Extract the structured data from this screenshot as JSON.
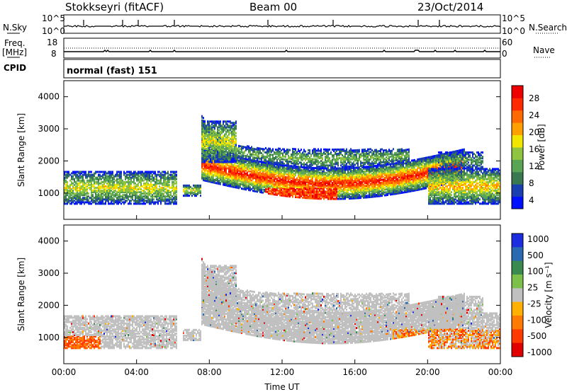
{
  "header": {
    "station": "Stokkseyri (fitACF)",
    "beam": "Beam 00",
    "date": "23/Oct/2014"
  },
  "top_panels": {
    "nsky_label": "N.Sky",
    "nsearch_label": "N.Search",
    "count_ticks": [
      "10^5",
      "10^0"
    ],
    "freq_label_1": "Freq.",
    "freq_label_2": "[MHz]",
    "freq_ticks": [
      "18",
      "8"
    ],
    "nave_label": "Nave",
    "nave_ticks": [
      "60",
      "0"
    ],
    "cpid_label": "CPID",
    "cpid_text": "normal (fast) 151"
  },
  "chart_data": [
    {
      "type": "heatmap",
      "title": "",
      "xlabel": "Time UT",
      "ylabel": "Slant Range [km]",
      "x_ticks": [
        "00:00",
        "04:00",
        "08:00",
        "12:00",
        "16:00",
        "20:00",
        "00:00"
      ],
      "x_range_hours": [
        0,
        24
      ],
      "ylim": [
        180,
        4500
      ],
      "y_ticks": [
        1000,
        2000,
        3000,
        4000
      ],
      "colorbar": {
        "label": "Power [dB]",
        "range": [
          0,
          31
        ],
        "ticks": [
          "28",
          "24",
          "20",
          "16",
          "12",
          "8",
          "4"
        ],
        "colors": [
          "#0010ff",
          "#1a3fb0",
          "#3a7850",
          "#5aa455",
          "#8ec440",
          "#f2e600",
          "#ffa000",
          "#ff6a00",
          "#ff2a00",
          "#ee0000"
        ]
      }
    },
    {
      "type": "heatmap",
      "title": "",
      "xlabel": "Time UT",
      "ylabel": "Slant Range [km]",
      "x_ticks": [
        "00:00",
        "04:00",
        "08:00",
        "12:00",
        "16:00",
        "20:00",
        "00:00"
      ],
      "x_range_hours": [
        0,
        24
      ],
      "ylim": [
        180,
        4500
      ],
      "y_ticks": [
        1000,
        2000,
        3000,
        4000
      ],
      "colorbar": {
        "label": "Velocity [m s⁻¹]",
        "ticks": [
          "1000",
          "500",
          "100",
          "25",
          "-25",
          "-100",
          "-500",
          "-1000"
        ],
        "colors": [
          "#1a2ee0",
          "#2a6ab0",
          "#3a8a50",
          "#7ac04a",
          "#c0c0c0",
          "#ffb000",
          "#ff7a00",
          "#ff3a00",
          "#e00000"
        ]
      }
    }
  ]
}
